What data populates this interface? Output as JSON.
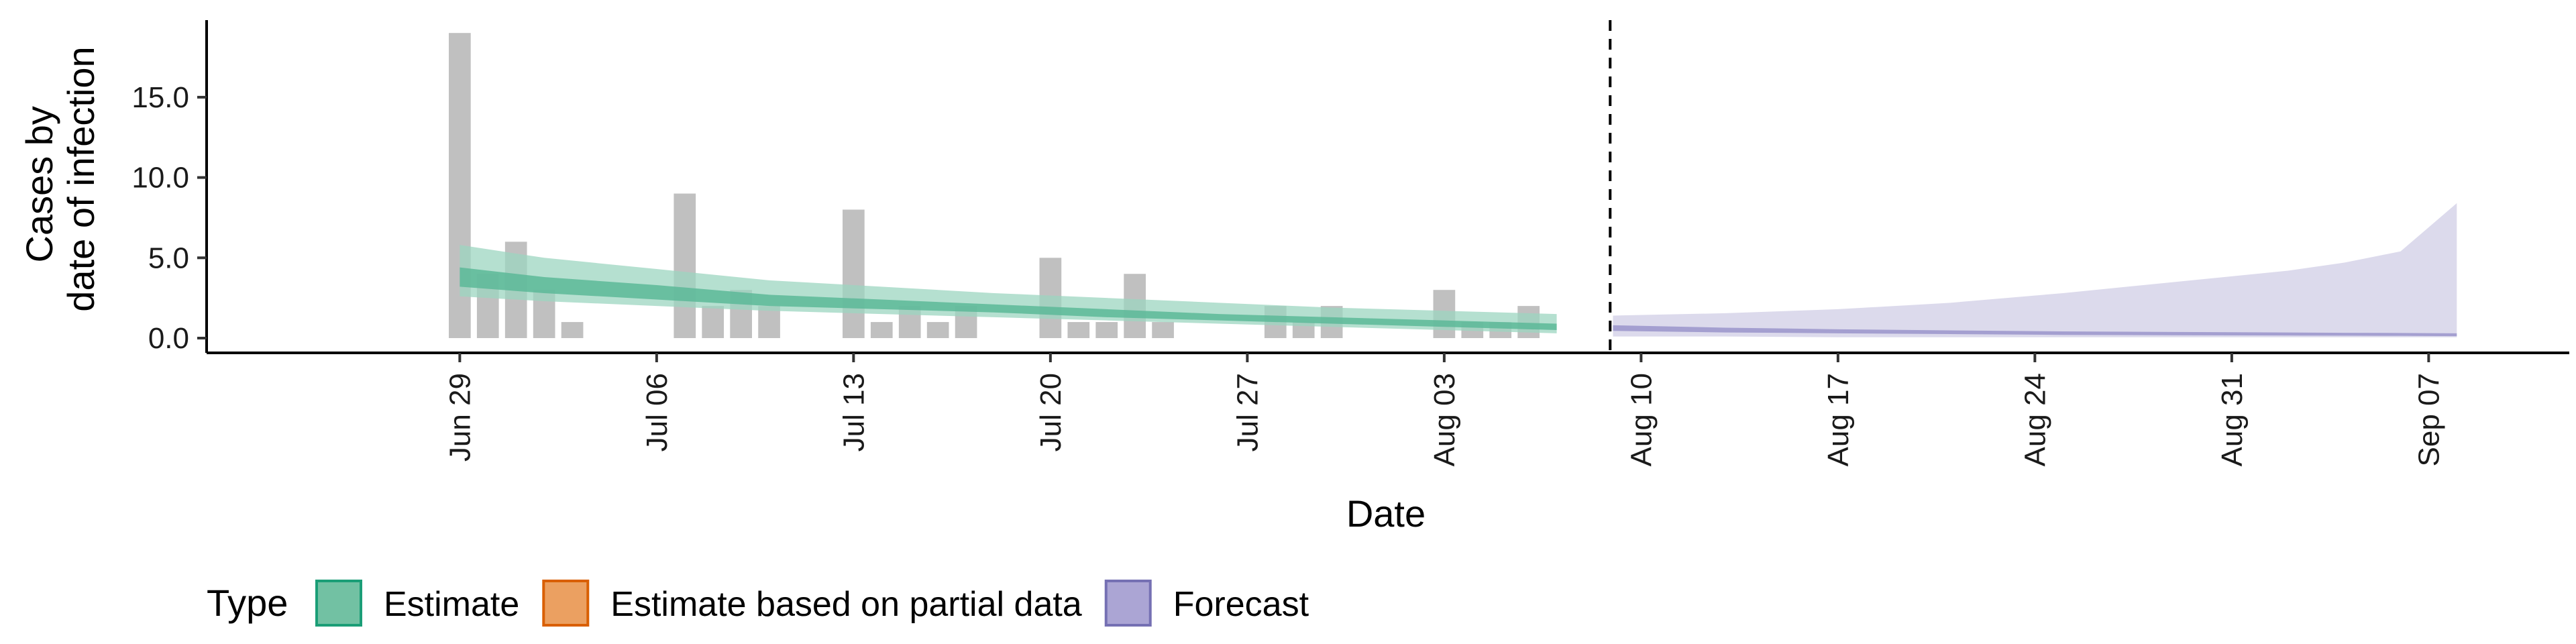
{
  "chart_data": {
    "type": "bar",
    "xlabel": "Date",
    "ylabel_lines": [
      "Cases by",
      "date of infection"
    ],
    "ylim": [
      0,
      19.8
    ],
    "y_ticks": [
      {
        "value": 0,
        "label": "0.0"
      },
      {
        "value": 5,
        "label": "5.0"
      },
      {
        "value": 10,
        "label": "10.0"
      },
      {
        "value": 15,
        "label": "15.0"
      }
    ],
    "x_range": [
      "2020-06-20",
      "2020-09-12"
    ],
    "x_ticks": [
      {
        "date": "2020-06-29",
        "label": "Jun 29"
      },
      {
        "date": "2020-07-06",
        "label": "Jul 06"
      },
      {
        "date": "2020-07-13",
        "label": "Jul 13"
      },
      {
        "date": "2020-07-20",
        "label": "Jul 20"
      },
      {
        "date": "2020-07-27",
        "label": "Jul 27"
      },
      {
        "date": "2020-08-03",
        "label": "Aug 03"
      },
      {
        "date": "2020-08-10",
        "label": "Aug 10"
      },
      {
        "date": "2020-08-17",
        "label": "Aug 17"
      },
      {
        "date": "2020-08-24",
        "label": "Aug 24"
      },
      {
        "date": "2020-08-31",
        "label": "Aug 31"
      },
      {
        "date": "2020-09-07",
        "label": "Sep 07"
      }
    ],
    "forecast_start": "2020-08-09",
    "reported_cases": [
      {
        "date": "2020-06-29",
        "value": 19
      },
      {
        "date": "2020-06-30",
        "value": 4
      },
      {
        "date": "2020-07-01",
        "value": 6
      },
      {
        "date": "2020-07-02",
        "value": 3
      },
      {
        "date": "2020-07-03",
        "value": 1
      },
      {
        "date": "2020-07-07",
        "value": 9
      },
      {
        "date": "2020-07-08",
        "value": 2
      },
      {
        "date": "2020-07-09",
        "value": 3
      },
      {
        "date": "2020-07-10",
        "value": 2
      },
      {
        "date": "2020-07-13",
        "value": 8
      },
      {
        "date": "2020-07-14",
        "value": 1
      },
      {
        "date": "2020-07-15",
        "value": 2
      },
      {
        "date": "2020-07-16",
        "value": 1
      },
      {
        "date": "2020-07-17",
        "value": 2
      },
      {
        "date": "2020-07-20",
        "value": 5
      },
      {
        "date": "2020-07-21",
        "value": 1
      },
      {
        "date": "2020-07-22",
        "value": 1
      },
      {
        "date": "2020-07-23",
        "value": 4
      },
      {
        "date": "2020-07-24",
        "value": 1
      },
      {
        "date": "2020-07-28",
        "value": 2
      },
      {
        "date": "2020-07-29",
        "value": 1
      },
      {
        "date": "2020-07-30",
        "value": 2
      },
      {
        "date": "2020-08-03",
        "value": 3
      },
      {
        "date": "2020-08-04",
        "value": 1
      },
      {
        "date": "2020-08-05",
        "value": 1
      },
      {
        "date": "2020-08-06",
        "value": 2
      }
    ],
    "estimate": {
      "name": "Estimate",
      "dates": [
        "2020-06-29",
        "2020-07-02",
        "2020-07-06",
        "2020-07-10",
        "2020-07-14",
        "2020-07-18",
        "2020-07-22",
        "2020-07-26",
        "2020-07-30",
        "2020-08-03",
        "2020-08-07"
      ],
      "outer_lower": [
        2.6,
        2.3,
        2.0,
        1.7,
        1.5,
        1.3,
        1.1,
        0.9,
        0.7,
        0.5,
        0.3
      ],
      "outer_upper": [
        5.8,
        5.0,
        4.3,
        3.6,
        3.2,
        2.8,
        2.5,
        2.2,
        1.9,
        1.7,
        1.5
      ],
      "inner_lower": [
        3.2,
        2.8,
        2.4,
        2.0,
        1.8,
        1.6,
        1.3,
        1.1,
        0.9,
        0.7,
        0.5
      ],
      "inner_upper": [
        4.4,
        3.8,
        3.3,
        2.7,
        2.4,
        2.1,
        1.8,
        1.5,
        1.3,
        1.1,
        0.9
      ]
    },
    "forecast": {
      "name": "Forecast",
      "dates": [
        "2020-08-09",
        "2020-08-13",
        "2020-08-17",
        "2020-08-21",
        "2020-08-25",
        "2020-08-29",
        "2020-09-02",
        "2020-09-04",
        "2020-09-06",
        "2020-09-07",
        "2020-09-08"
      ],
      "outer_lower": [
        0.1,
        0.1,
        0.05,
        0.05,
        0.05,
        0.05,
        0.05,
        0.05,
        0.05,
        0.05,
        0.05
      ],
      "outer_upper": [
        1.4,
        1.55,
        1.8,
        2.2,
        2.8,
        3.5,
        4.2,
        4.7,
        5.4,
        6.9,
        8.4
      ],
      "inner_lower": [
        0.45,
        0.35,
        0.3,
        0.25,
        0.2,
        0.18,
        0.16,
        0.15,
        0.14,
        0.13,
        0.12
      ],
      "inner_upper": [
        0.8,
        0.65,
        0.55,
        0.48,
        0.42,
        0.38,
        0.35,
        0.33,
        0.32,
        0.31,
        0.3
      ]
    },
    "legend": {
      "title": "Type",
      "position": "bottom-left",
      "items": [
        {
          "label": "Estimate",
          "fill": "#72c1a3",
          "stroke": "#1b9e77"
        },
        {
          "label": "Estimate based on partial data",
          "fill": "#eba061",
          "stroke": "#d95f02"
        },
        {
          "label": "Forecast",
          "fill": "#aba5d4",
          "stroke": "#7570b3"
        }
      ]
    },
    "colors": {
      "bar": "#c0c0c0",
      "estimate_outer": "#9cd6c0",
      "estimate_inner": "#5cb898",
      "forecast_outer": "#d8d6ea",
      "forecast_inner": "#a09ccf"
    },
    "grid": false
  }
}
